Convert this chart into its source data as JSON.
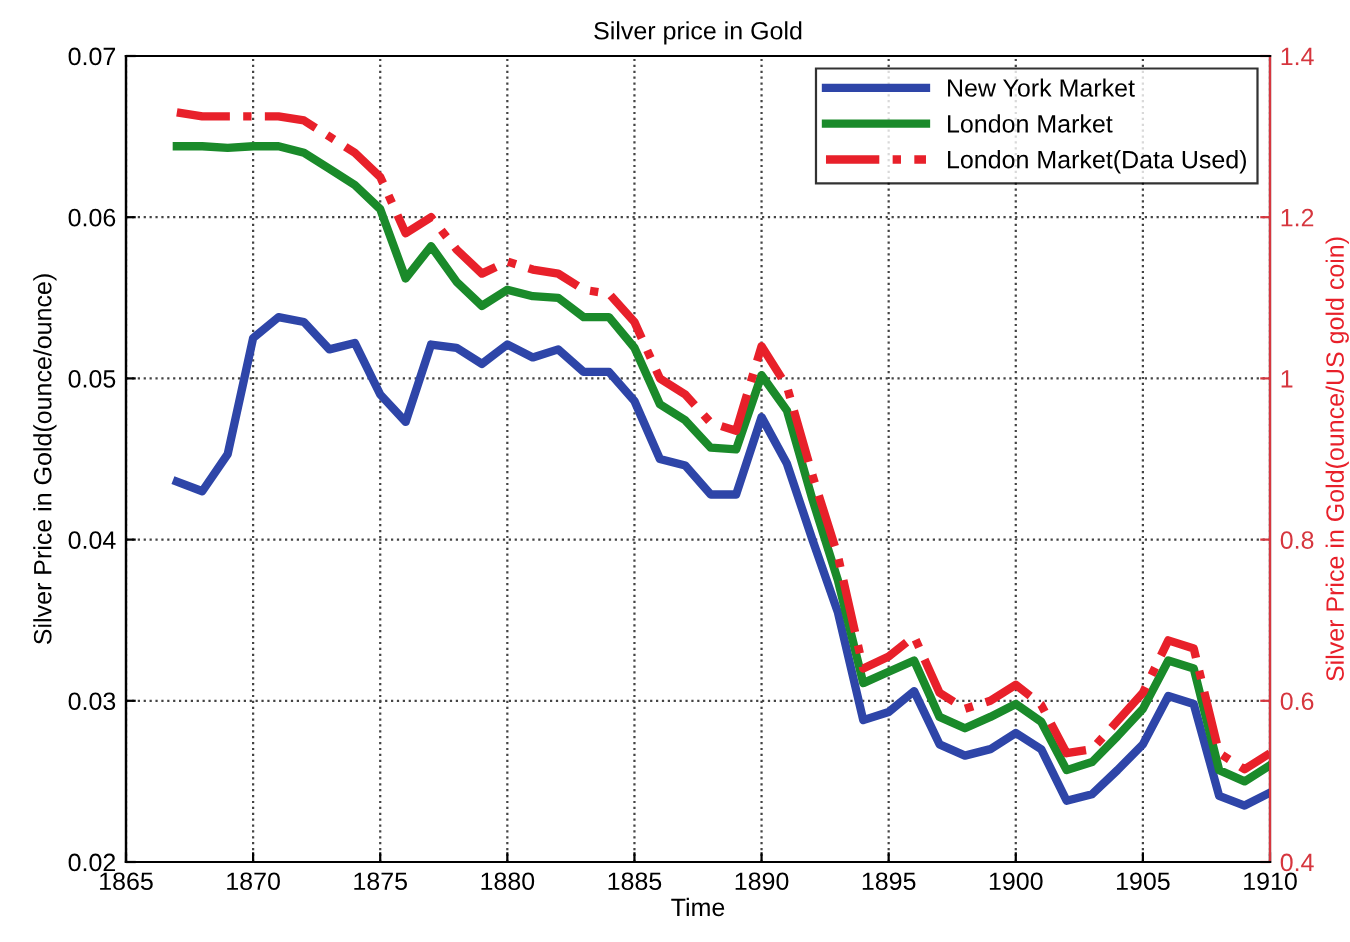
{
  "chart_data": {
    "type": "line",
    "title": "Silver price in Gold",
    "xlabel": "Time",
    "ylabel": "Silver Price in Gold(ounce/ounce)",
    "y2label": "Silver Price in Gold(ounce/US gold coin)",
    "x": [
      1867,
      1868,
      1869,
      1870,
      1871,
      1872,
      1873,
      1874,
      1875,
      1876,
      1877,
      1878,
      1879,
      1880,
      1881,
      1882,
      1883,
      1884,
      1885,
      1886,
      1887,
      1888,
      1889,
      1890,
      1891,
      1892,
      1893,
      1894,
      1895,
      1896,
      1897,
      1898,
      1899,
      1900,
      1901,
      1902,
      1903,
      1904,
      1905,
      1906,
      1907,
      1908,
      1909,
      1910
    ],
    "series": [
      {
        "name": "New York Market",
        "color": "#2e45a8",
        "line_style": "solid",
        "values": [
          0.0436,
          0.043,
          0.0453,
          0.0525,
          0.0538,
          0.0535,
          0.0518,
          0.0522,
          0.049,
          0.0473,
          0.0521,
          0.0519,
          0.0509,
          0.0521,
          0.0513,
          0.0518,
          0.0504,
          0.0504,
          0.0486,
          0.045,
          0.0446,
          0.0428,
          0.0428,
          0.0476,
          0.0447,
          0.04,
          0.0355,
          0.0288,
          0.0293,
          0.0306,
          0.0273,
          0.0266,
          0.027,
          0.028,
          0.027,
          0.0238,
          0.0242,
          0.0257,
          0.0273,
          0.0303,
          0.0298,
          0.0241,
          0.0235,
          0.0243
        ]
      },
      {
        "name": "London Market",
        "color": "#1a8a2a",
        "line_style": "solid",
        "values": [
          0.0644,
          0.0644,
          0.0643,
          0.0644,
          0.0644,
          0.064,
          0.063,
          0.062,
          0.0605,
          0.0562,
          0.0582,
          0.056,
          0.0545,
          0.0555,
          0.0551,
          0.055,
          0.0538,
          0.0538,
          0.0519,
          0.0484,
          0.0474,
          0.0457,
          0.0456,
          0.0502,
          0.048,
          0.0425,
          0.0375,
          0.0311,
          0.0318,
          0.0325,
          0.029,
          0.0283,
          0.029,
          0.0298,
          0.0287,
          0.0257,
          0.0262,
          0.0278,
          0.0295,
          0.0325,
          0.032,
          0.0257,
          0.025,
          0.026
        ]
      },
      {
        "name": "London Market(Data Used)",
        "color": "#e8202a",
        "line_style": "dashdot",
        "axis": "y2",
        "values": [
          1.33,
          1.325,
          1.325,
          1.325,
          1.325,
          1.32,
          1.3,
          1.28,
          1.25,
          1.18,
          1.2,
          1.16,
          1.13,
          1.145,
          1.135,
          1.13,
          1.11,
          1.105,
          1.07,
          1.0,
          0.98,
          0.945,
          0.935,
          1.04,
          0.99,
          0.88,
          0.78,
          0.64,
          0.655,
          0.68,
          0.61,
          0.59,
          0.6,
          0.62,
          0.595,
          0.535,
          0.54,
          0.575,
          0.61,
          0.675,
          0.665,
          0.535,
          0.515,
          0.535
        ]
      }
    ],
    "xlim": [
      1865,
      1910
    ],
    "xticks": [
      1865,
      1870,
      1875,
      1880,
      1885,
      1890,
      1895,
      1900,
      1905,
      1910
    ],
    "ylim": [
      0.02,
      0.07
    ],
    "yticks": [
      0.02,
      0.03,
      0.04,
      0.05,
      0.06,
      0.07
    ],
    "y2lim": [
      0.4,
      1.4
    ],
    "y2ticks": [
      0.4,
      0.6,
      0.8,
      1,
      1.2,
      1.4
    ],
    "grid": true,
    "legend": "top right"
  }
}
